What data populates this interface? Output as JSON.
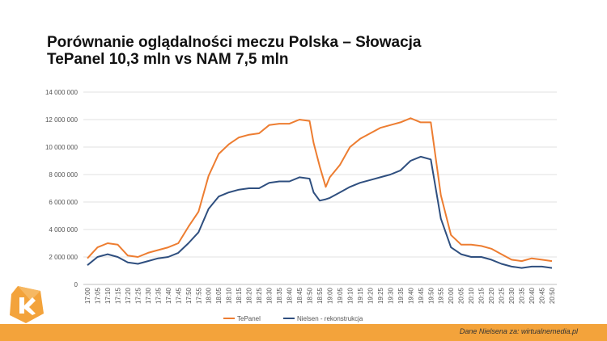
{
  "header": {
    "line1": "Porównanie oglądalności meczu Polska – Słowacja",
    "line2": "TePanel 10,3 mln vs NAM 7,5 mln"
  },
  "footer": {
    "source": "Dane Nielsena za: wirtualnemedia.pl"
  },
  "colors": {
    "tepanel": "#ed7d31",
    "nielsen": "#2f4f7f",
    "accent": "#f3a33b"
  },
  "chart_data": {
    "type": "line",
    "title": "Porównanie oglądalności meczu Polska – Słowacja",
    "ylim": [
      0,
      14000000
    ],
    "y_ticks": [
      {
        "value": 0,
        "label": "0"
      },
      {
        "value": 2000000,
        "label": "2 000 000"
      },
      {
        "value": 4000000,
        "label": "4 000 000"
      },
      {
        "value": 6000000,
        "label": "6 000 000"
      },
      {
        "value": 8000000,
        "label": "8 000 000"
      },
      {
        "value": 10000000,
        "label": "10 000 000"
      },
      {
        "value": 12000000,
        "label": "12 000 000"
      },
      {
        "value": 14000000,
        "label": "14 000 000"
      }
    ],
    "x_labels": [
      "17:00",
      "17:05",
      "17:10",
      "17:15",
      "17:20",
      "17:25",
      "17:30",
      "17:35",
      "17:40",
      "17:45",
      "17:50",
      "17:55",
      "18:00",
      "18:05",
      "18:10",
      "18:15",
      "18:20",
      "18:25",
      "18:30",
      "18:35",
      "18:40",
      "18:45",
      "18:50",
      "18:55",
      "19:00",
      "19:05",
      "19:10",
      "19:15",
      "19:20",
      "19:25",
      "19:30",
      "19:35",
      "19:40",
      "19:45",
      "19:50",
      "19:55",
      "20:00",
      "20:05",
      "20:10",
      "20:15",
      "20:20",
      "20:25",
      "20:30",
      "20:35",
      "20:40",
      "20:45",
      "20:50"
    ],
    "x_range": [
      0,
      230
    ],
    "series": [
      {
        "name": "TePanel",
        "x": [
          0,
          5,
          10,
          15,
          20,
          25,
          30,
          35,
          40,
          45,
          50,
          55,
          60,
          65,
          70,
          75,
          80,
          85,
          90,
          95,
          100,
          105,
          110,
          112,
          115,
          118,
          120,
          125,
          130,
          135,
          140,
          145,
          150,
          155,
          160,
          165,
          170,
          175,
          180,
          185,
          190,
          195,
          200,
          205,
          210,
          215,
          220,
          225,
          230
        ],
        "values": [
          1900000,
          2700000,
          3000000,
          2900000,
          2100000,
          2000000,
          2300000,
          2500000,
          2700000,
          3000000,
          4200000,
          5300000,
          7900000,
          9500000,
          10200000,
          10700000,
          10900000,
          11000000,
          11600000,
          11700000,
          11700000,
          12000000,
          11900000,
          10300000,
          8600000,
          7100000,
          7800000,
          8700000,
          10000000,
          10600000,
          11000000,
          11400000,
          11600000,
          11800000,
          12100000,
          11800000,
          11800000,
          6500000,
          3600000,
          2900000,
          2900000,
          2800000,
          2600000,
          2200000,
          1800000,
          1700000,
          1900000,
          1800000,
          1700000
        ]
      },
      {
        "name": "Nielsen - rekonstrukcja",
        "x": [
          0,
          5,
          10,
          15,
          20,
          25,
          30,
          35,
          40,
          45,
          50,
          55,
          60,
          65,
          70,
          75,
          80,
          85,
          90,
          95,
          100,
          105,
          110,
          112,
          115,
          118,
          120,
          125,
          130,
          135,
          140,
          145,
          150,
          155,
          160,
          165,
          170,
          175,
          180,
          185,
          190,
          195,
          200,
          205,
          210,
          215,
          220,
          225,
          230
        ],
        "values": [
          1400000,
          2000000,
          2200000,
          2000000,
          1600000,
          1500000,
          1700000,
          1900000,
          2000000,
          2300000,
          3000000,
          3800000,
          5500000,
          6400000,
          6700000,
          6900000,
          7000000,
          7000000,
          7400000,
          7500000,
          7500000,
          7800000,
          7700000,
          6700000,
          6100000,
          6200000,
          6300000,
          6700000,
          7100000,
          7400000,
          7600000,
          7800000,
          8000000,
          8300000,
          9000000,
          9300000,
          9100000,
          4800000,
          2700000,
          2200000,
          2000000,
          2000000,
          1800000,
          1500000,
          1300000,
          1200000,
          1300000,
          1300000,
          1200000
        ]
      }
    ],
    "legend": [
      "TePanel",
      "Nielsen - rekonstrukcja"
    ]
  }
}
